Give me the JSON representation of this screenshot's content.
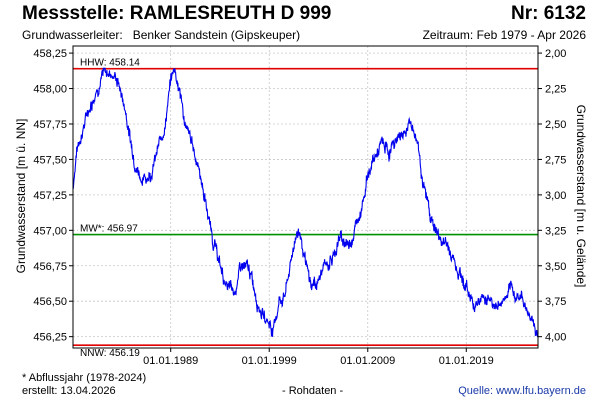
{
  "header": {
    "station_label": "Messstelle: RAMLESREUTH D 999",
    "number_label": "Nr: 6132",
    "aquifer_label": "Grundwasserleiter:",
    "aquifer_value": "Benker Sandstein (Gipskeuper)",
    "period_label": "Zeitraum: Feb 1979 - Apr 2026"
  },
  "footer": {
    "footnote": "* Abflussjahr (1978-2024)",
    "created": "erstellt:  13.04.2026",
    "raw_note": "- Rohdaten -",
    "source": "Quelle:  www.lfu.bayern.de"
  },
  "colors": {
    "series": "#0000ee",
    "extreme_lines": "#e00000",
    "mean_line": "#009000",
    "grid": "#c8c8c8"
  },
  "chart_data": {
    "type": "line",
    "title": "",
    "xlabel": "",
    "ylabel": "Grundwasserstand [m ü. NN]",
    "ylabel_right": "Grundwasserstand [m u. Gelände]",
    "xlim": [
      "1979-02-01",
      "2026-04-13"
    ],
    "ylim": [
      456.17,
      458.3
    ],
    "ylim_right": [
      4.08,
      1.95
    ],
    "x_ticks": [
      "01.01.1989",
      "01.01.1999",
      "01.01.2009",
      "01.01.2019"
    ],
    "y_ticks": [
      "458,25",
      "458,00",
      "457,75",
      "457,50",
      "457,25",
      "457,00",
      "456,75",
      "456,50",
      "456,25"
    ],
    "y_ticks_right": [
      "2,00",
      "2,25",
      "2,50",
      "2,75",
      "3,00",
      "3,25",
      "3,50",
      "3,75",
      "4,00"
    ],
    "grid": true,
    "reference_lines": [
      {
        "label": "HHW: 458.14",
        "value": 458.14,
        "kind": "max"
      },
      {
        "label": "MW*: 456.97",
        "value": 456.97,
        "kind": "mean"
      },
      {
        "label": "NNW: 456.19",
        "value": 456.19,
        "kind": "min"
      }
    ],
    "series": [
      {
        "x": [
          "1979-02-01",
          "1979-06-01",
          "1980-01-01",
          "1980-09-01",
          "1981-06-01",
          "1982-03-01",
          "1983-01-01",
          "1983-09-01",
          "1984-06-01",
          "1985-01-01",
          "1985-08-01",
          "1986-04-01",
          "1987-01-01",
          "1987-09-01",
          "1988-06-01",
          "1989-01-01",
          "1989-06-01",
          "1990-01-01",
          "1990-08-01",
          "1991-04-01",
          "1992-01-01",
          "1992-09-01",
          "1993-04-01",
          "1994-01-01",
          "1994-09-01",
          "1995-06-01",
          "1996-03-01",
          "1997-01-01",
          "1997-09-01",
          "1998-06-01",
          "1999-01-01",
          "1999-06-01",
          "2000-01-01",
          "2000-08-01",
          "2001-03-01",
          "2001-10-01",
          "2002-03-01",
          "2002-09-01",
          "2003-04-01",
          "2004-01-01",
          "2004-09-01",
          "2005-06-01",
          "2006-03-01",
          "2007-01-01",
          "2007-09-01",
          "2008-06-01",
          "2009-01-01",
          "2009-09-01",
          "2010-06-01",
          "2011-03-01",
          "2012-01-01",
          "2012-09-01",
          "2013-06-01",
          "2014-03-01",
          "2014-09-01",
          "2015-06-01",
          "2016-03-01",
          "2017-01-01",
          "2017-09-01",
          "2018-06-01",
          "2019-01-01",
          "2019-09-01",
          "2020-06-01",
          "2021-03-01",
          "2022-01-01",
          "2022-09-01",
          "2023-06-01",
          "2024-03-01",
          "2024-12-01",
          "2025-06-01",
          "2025-12-01",
          "2026-04-01"
        ],
        "y": [
          457.3,
          457.55,
          457.7,
          457.85,
          458.0,
          458.1,
          458.12,
          458.05,
          457.85,
          457.6,
          457.45,
          457.35,
          457.42,
          457.55,
          457.75,
          458.05,
          458.15,
          457.95,
          457.7,
          457.6,
          457.4,
          457.15,
          456.95,
          456.75,
          456.6,
          456.55,
          456.75,
          456.7,
          456.55,
          456.4,
          456.35,
          456.3,
          456.5,
          456.55,
          456.75,
          457.0,
          456.98,
          456.75,
          456.6,
          456.65,
          456.75,
          456.8,
          456.95,
          456.9,
          457.0,
          457.2,
          457.4,
          457.5,
          457.6,
          457.55,
          457.65,
          457.7,
          457.75,
          457.6,
          457.3,
          457.1,
          456.95,
          456.9,
          456.8,
          456.7,
          456.6,
          456.5,
          456.5,
          456.55,
          456.45,
          456.5,
          456.55,
          456.55,
          456.5,
          456.4,
          456.35,
          456.25
        ]
      }
    ]
  }
}
